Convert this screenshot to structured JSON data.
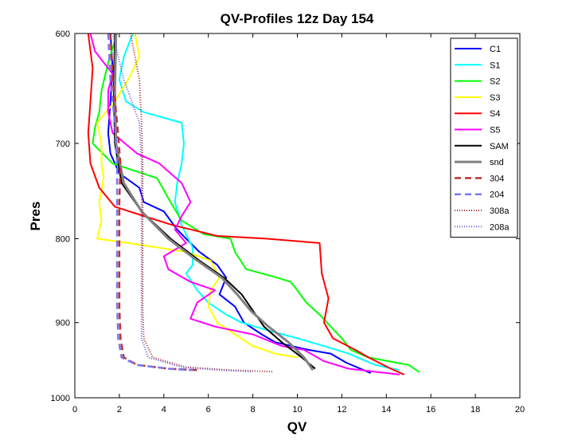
{
  "chart_data": {
    "type": "line",
    "title": "QV-Profiles 12z Day 154",
    "xlabel": "QV",
    "ylabel": "Pres",
    "xlim": [
      0,
      20
    ],
    "ylim": [
      600,
      1000
    ],
    "y_reversed": true,
    "y_scale": "log",
    "xticks": [
      "0",
      "2",
      "4",
      "6",
      "8",
      "10",
      "12",
      "14",
      "16",
      "18",
      "20"
    ],
    "yticks": [
      "600",
      "700",
      "800",
      "900",
      "1000"
    ],
    "grid": false,
    "legend_position": "top-right",
    "series": [
      {
        "name": "C1",
        "color": "#0000ff",
        "dash": "solid",
        "width": 2,
        "points": [
          [
            1.6,
            600
          ],
          [
            1.7,
            630
          ],
          [
            1.6,
            660
          ],
          [
            1.5,
            690
          ],
          [
            1.6,
            710
          ],
          [
            2.0,
            730
          ],
          [
            2.9,
            745
          ],
          [
            3.1,
            760
          ],
          [
            4.0,
            770
          ],
          [
            4.6,
            790
          ],
          [
            5.0,
            800
          ],
          [
            5.6,
            815
          ],
          [
            6.4,
            830
          ],
          [
            6.8,
            845
          ],
          [
            6.5,
            865
          ],
          [
            7.2,
            880
          ],
          [
            7.6,
            900
          ],
          [
            8.4,
            915
          ],
          [
            9.0,
            925
          ],
          [
            10.5,
            935
          ],
          [
            11.5,
            940
          ],
          [
            12.2,
            952
          ],
          [
            13.3,
            966
          ]
        ]
      },
      {
        "name": "S1",
        "color": "#00ffff",
        "dash": "solid",
        "width": 2,
        "points": [
          [
            2.6,
            600
          ],
          [
            2.2,
            620
          ],
          [
            2.0,
            640
          ],
          [
            2.3,
            660
          ],
          [
            3.1,
            670
          ],
          [
            4.8,
            680
          ],
          [
            4.9,
            700
          ],
          [
            4.8,
            720
          ],
          [
            4.6,
            740
          ],
          [
            4.5,
            760
          ],
          [
            4.8,
            785
          ],
          [
            5.1,
            800
          ],
          [
            5.3,
            810
          ],
          [
            5.3,
            830
          ],
          [
            5.0,
            840
          ],
          [
            5.5,
            860
          ],
          [
            6.0,
            875
          ],
          [
            6.8,
            890
          ],
          [
            7.5,
            900
          ],
          [
            8.7,
            910
          ],
          [
            10.0,
            920
          ],
          [
            11.2,
            930
          ],
          [
            12.3,
            940
          ],
          [
            13.5,
            955
          ],
          [
            14.6,
            962
          ]
        ]
      },
      {
        "name": "S2",
        "color": "#00ff00",
        "dash": "solid",
        "width": 2,
        "points": [
          [
            1.9,
            600
          ],
          [
            1.5,
            625
          ],
          [
            1.2,
            650
          ],
          [
            1.1,
            670
          ],
          [
            0.9,
            685
          ],
          [
            0.8,
            700
          ],
          [
            1.7,
            720
          ],
          [
            3.7,
            735
          ],
          [
            4.3,
            760
          ],
          [
            4.8,
            780
          ],
          [
            5.8,
            795
          ],
          [
            7.0,
            800
          ],
          [
            7.2,
            815
          ],
          [
            7.7,
            835
          ],
          [
            9.1,
            845
          ],
          [
            9.7,
            850
          ],
          [
            10.0,
            860
          ],
          [
            10.4,
            875
          ],
          [
            11.0,
            890
          ],
          [
            11.5,
            905
          ],
          [
            12.0,
            920
          ],
          [
            12.4,
            935
          ],
          [
            13.2,
            945
          ],
          [
            15.0,
            955
          ],
          [
            15.5,
            965
          ]
        ]
      },
      {
        "name": "S3",
        "color": "#ffff00",
        "dash": "solid",
        "width": 2,
        "points": [
          [
            2.7,
            600
          ],
          [
            2.9,
            620
          ],
          [
            2.4,
            640
          ],
          [
            1.8,
            660
          ],
          [
            1.0,
            680
          ],
          [
            1.2,
            700
          ],
          [
            1.2,
            720
          ],
          [
            1.3,
            735
          ],
          [
            1.1,
            760
          ],
          [
            1.2,
            780
          ],
          [
            1.0,
            800
          ],
          [
            2.4,
            805
          ],
          [
            5.0,
            815
          ],
          [
            6.1,
            825
          ],
          [
            6.5,
            845
          ],
          [
            6.1,
            860
          ],
          [
            6.0,
            880
          ],
          [
            6.4,
            900
          ],
          [
            7.2,
            915
          ],
          [
            8.0,
            930
          ],
          [
            9.0,
            940
          ],
          [
            10.0,
            945
          ]
        ]
      },
      {
        "name": "S4",
        "color": "#ff0000",
        "dash": "solid",
        "width": 2,
        "points": [
          [
            0.6,
            600
          ],
          [
            0.8,
            630
          ],
          [
            0.7,
            660
          ],
          [
            0.6,
            690
          ],
          [
            0.7,
            720
          ],
          [
            1.1,
            745
          ],
          [
            1.8,
            765
          ],
          [
            3.1,
            775
          ],
          [
            4.4,
            785
          ],
          [
            6.4,
            797
          ],
          [
            8.6,
            800
          ],
          [
            11.0,
            805
          ],
          [
            11.1,
            840
          ],
          [
            11.4,
            870
          ],
          [
            11.2,
            900
          ],
          [
            11.6,
            920
          ],
          [
            12.6,
            935
          ],
          [
            13.2,
            945
          ],
          [
            14.2,
            960
          ],
          [
            14.8,
            968
          ]
        ]
      },
      {
        "name": "S5",
        "color": "#ff00ff",
        "dash": "solid",
        "width": 2,
        "points": [
          [
            0.7,
            600
          ],
          [
            0.9,
            615
          ],
          [
            1.3,
            625
          ],
          [
            1.7,
            635
          ],
          [
            1.5,
            650
          ],
          [
            1.5,
            670
          ],
          [
            1.7,
            690
          ],
          [
            2.8,
            710
          ],
          [
            3.8,
            720
          ],
          [
            4.8,
            740
          ],
          [
            5.2,
            760
          ],
          [
            4.8,
            775
          ],
          [
            4.5,
            790
          ],
          [
            5.0,
            805
          ],
          [
            4.0,
            820
          ],
          [
            4.2,
            835
          ],
          [
            5.2,
            850
          ],
          [
            6.3,
            860
          ],
          [
            5.5,
            875
          ],
          [
            5.2,
            895
          ],
          [
            6.3,
            905
          ],
          [
            8.0,
            915
          ],
          [
            9.3,
            930
          ],
          [
            10.3,
            935
          ],
          [
            11.2,
            950
          ],
          [
            12.3,
            960
          ],
          [
            14.6,
            968
          ]
        ]
      },
      {
        "name": "SAM",
        "color": "#000000",
        "dash": "solid",
        "width": 2,
        "points": [
          [
            1.8,
            600
          ],
          [
            1.75,
            650
          ],
          [
            1.8,
            700
          ],
          [
            2.1,
            740
          ],
          [
            3.0,
            770
          ],
          [
            4.3,
            800
          ],
          [
            5.6,
            825
          ],
          [
            6.7,
            845
          ],
          [
            7.5,
            865
          ],
          [
            8.0,
            885
          ],
          [
            8.5,
            905
          ],
          [
            9.3,
            925
          ],
          [
            10.2,
            945
          ],
          [
            10.8,
            960
          ]
        ]
      },
      {
        "name": "snd",
        "color": "#808080",
        "dash": "solid",
        "width": 3,
        "points": [
          [
            1.85,
            600
          ],
          [
            1.8,
            650
          ],
          [
            1.85,
            700
          ],
          [
            2.2,
            740
          ],
          [
            3.0,
            770
          ],
          [
            4.2,
            800
          ],
          [
            5.5,
            825
          ],
          [
            6.6,
            845
          ],
          [
            7.3,
            865
          ],
          [
            7.9,
            885
          ],
          [
            8.7,
            905
          ],
          [
            9.6,
            925
          ],
          [
            10.3,
            945
          ],
          [
            10.7,
            962
          ]
        ]
      },
      {
        "name": "304",
        "color": "#c03030",
        "dash": "8 5",
        "width": 2.5,
        "points": [
          [
            1.6,
            600
          ],
          [
            1.7,
            640
          ],
          [
            1.9,
            680
          ],
          [
            2.05,
            720
          ],
          [
            2.0,
            760
          ],
          [
            2.0,
            800
          ],
          [
            2.0,
            840
          ],
          [
            2.0,
            880
          ],
          [
            2.05,
            920
          ],
          [
            2.2,
            945
          ],
          [
            2.8,
            955
          ],
          [
            4.2,
            960
          ],
          [
            5.5,
            962
          ]
        ]
      },
      {
        "name": "204",
        "color": "#7878ee",
        "dash": "8 5",
        "width": 2.5,
        "points": [
          [
            1.5,
            600
          ],
          [
            1.6,
            640
          ],
          [
            1.8,
            680
          ],
          [
            1.9,
            720
          ],
          [
            1.9,
            760
          ],
          [
            1.9,
            800
          ],
          [
            1.9,
            840
          ],
          [
            1.9,
            880
          ],
          [
            1.95,
            920
          ],
          [
            2.1,
            945
          ],
          [
            2.8,
            955
          ],
          [
            4.2,
            960
          ],
          [
            5.3,
            962
          ]
        ]
      },
      {
        "name": "308a",
        "color": "#aa2a2a",
        "dash": "1 2",
        "width": 2,
        "points": [
          [
            2.5,
            600
          ],
          [
            2.9,
            640
          ],
          [
            3.0,
            680
          ],
          [
            3.05,
            720
          ],
          [
            3.05,
            760
          ],
          [
            3.05,
            800
          ],
          [
            3.05,
            840
          ],
          [
            3.05,
            880
          ],
          [
            3.1,
            920
          ],
          [
            3.5,
            945
          ],
          [
            5.0,
            958
          ],
          [
            7.0,
            962
          ],
          [
            8.9,
            964
          ]
        ]
      },
      {
        "name": "208a",
        "color": "#6a5ad6",
        "dash": "1 2",
        "width": 2,
        "points": [
          [
            1.7,
            600
          ],
          [
            2.2,
            640
          ],
          [
            2.9,
            680
          ],
          [
            3.0,
            720
          ],
          [
            3.0,
            760
          ],
          [
            3.0,
            800
          ],
          [
            3.0,
            840
          ],
          [
            3.0,
            880
          ],
          [
            3.0,
            920
          ],
          [
            3.3,
            945
          ],
          [
            4.8,
            958
          ],
          [
            6.5,
            962
          ],
          [
            8.0,
            964
          ]
        ]
      }
    ]
  }
}
